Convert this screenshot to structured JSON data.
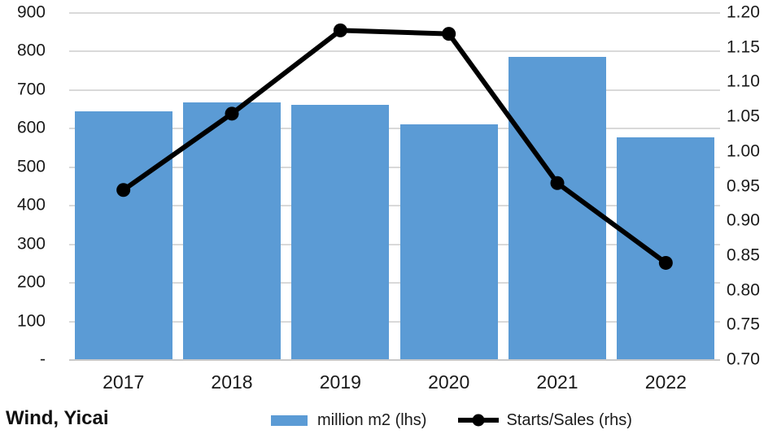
{
  "source": "Wind, Yicai",
  "colors": {
    "bar": "#5b9bd5",
    "line": "#000000",
    "grid": "#d9d9d9",
    "axis_line": "#c9c9c9",
    "text": "#1a1a1a"
  },
  "chart_data": {
    "type": "bar",
    "subtype": "combo-bar-line-dual-axis",
    "title": "",
    "categories": [
      "2017",
      "2018",
      "2019",
      "2020",
      "2021",
      "2022"
    ],
    "series": [
      {
        "name": "million m2 (lhs)",
        "type": "bar",
        "axis": "left",
        "color": "#5b9bd5",
        "values": [
          645,
          668,
          661,
          611,
          786,
          577
        ]
      },
      {
        "name": "Starts/Sales (rhs)",
        "type": "line",
        "axis": "right",
        "color": "#000000",
        "marker": "circle",
        "values": [
          0.945,
          1.055,
          1.175,
          1.17,
          0.955,
          0.84
        ]
      }
    ],
    "left_axis": {
      "min": 0,
      "max": 900,
      "step": 100,
      "ticks": [
        "900",
        "800",
        "700",
        "600",
        "500",
        "400",
        "300",
        "200",
        "100",
        "-"
      ]
    },
    "right_axis": {
      "min": 0.7,
      "max": 1.2,
      "step": 0.05,
      "ticks": [
        "1.20",
        "1.15",
        "1.10",
        "1.05",
        "1.00",
        "0.95",
        "0.90",
        "0.85",
        "0.80",
        "0.75",
        "0.70"
      ]
    },
    "grid": true,
    "legend_position": "bottom"
  }
}
